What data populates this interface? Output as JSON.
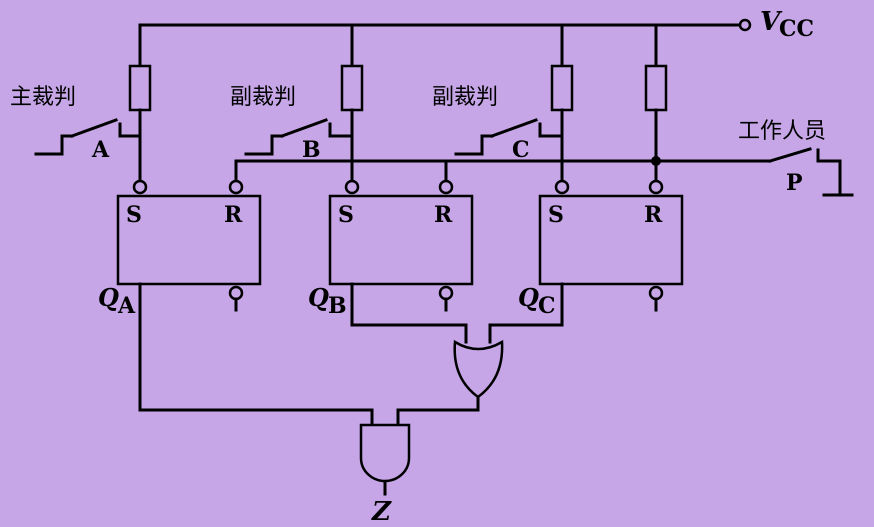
{
  "labels": {
    "vcc_main": "V",
    "vcc_sub": "CC",
    "chief_referee": "主裁判",
    "sub_referee_1": "副裁判",
    "sub_referee_2": "副裁判",
    "staff": "工作人员",
    "switch_a": "A",
    "switch_b": "B",
    "switch_c": "C",
    "switch_p": "P",
    "ff_a_s": "S",
    "ff_a_r": "R",
    "ff_b_s": "S",
    "ff_b_r": "R",
    "ff_c_s": "S",
    "ff_c_r": "R",
    "qa_main": "Q",
    "qa_sub": "A",
    "qb_main": "Q",
    "qb_sub": "B",
    "qc_main": "Q",
    "qc_sub": "C",
    "output": "Z"
  }
}
